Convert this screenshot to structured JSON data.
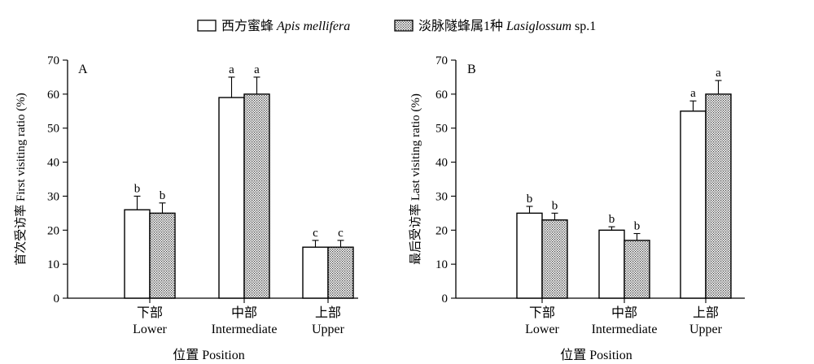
{
  "legend": {
    "items": [
      {
        "zh": "西方蜜蜂",
        "latin": "Apis mellifera",
        "suffix": "",
        "pattern": "open"
      },
      {
        "zh": "淡脉隧蜂属1种",
        "latin": "Lasiglossum",
        "suffix": " sp.1",
        "pattern": "dotted"
      }
    ]
  },
  "chart_data": [
    {
      "type": "bar",
      "panel": "A",
      "ylabel": "首次受访率 First visiting ratio (%)",
      "xlabel": "位置 Position",
      "categories": [
        {
          "zh": "下部",
          "en": "Lower"
        },
        {
          "zh": "中部",
          "en": "Intermediate"
        },
        {
          "zh": "上部",
          "en": "Upper"
        }
      ],
      "ylim": [
        0,
        70
      ],
      "yticks": [
        0,
        10,
        20,
        30,
        40,
        50,
        60,
        70
      ],
      "grid": false,
      "legend_position": "top-center",
      "series": [
        {
          "values": [
            26,
            59,
            15
          ],
          "errors": [
            4,
            6,
            2
          ],
          "letters": [
            "b",
            "a",
            "c"
          ]
        },
        {
          "values": [
            25,
            60,
            15
          ],
          "errors": [
            3,
            5,
            2
          ],
          "letters": [
            "b",
            "a",
            "c"
          ]
        }
      ]
    },
    {
      "type": "bar",
      "panel": "B",
      "ylabel": "最后受访率 Last visiting ratio (%)",
      "xlabel": "位置 Position",
      "categories": [
        {
          "zh": "下部",
          "en": "Lower"
        },
        {
          "zh": "中部",
          "en": "Intermediate"
        },
        {
          "zh": "上部",
          "en": "Upper"
        }
      ],
      "ylim": [
        0,
        70
      ],
      "yticks": [
        0,
        10,
        20,
        30,
        40,
        50,
        60,
        70
      ],
      "grid": false,
      "legend_position": "top-center",
      "series": [
        {
          "values": [
            25,
            20,
            55
          ],
          "errors": [
            2,
            1,
            3
          ],
          "letters": [
            "b",
            "b",
            "a"
          ]
        },
        {
          "values": [
            23,
            17,
            60
          ],
          "errors": [
            2,
            2,
            4
          ],
          "letters": [
            "b",
            "b",
            "a"
          ]
        }
      ]
    }
  ]
}
